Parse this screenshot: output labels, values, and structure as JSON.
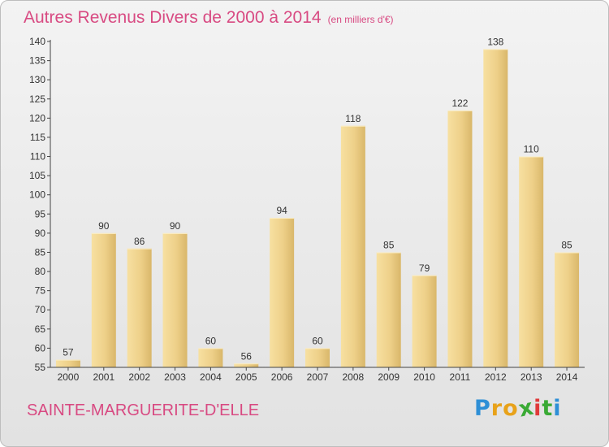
{
  "header": {
    "title": "Autres Revenus Divers de 2000 à 2014",
    "subtitle": "(en milliers d'€)"
  },
  "footer": {
    "commune": "SAINTE-MARGUERITE-D'ELLE",
    "logo_letters": [
      "P",
      "r",
      "o",
      "x",
      "i",
      "t",
      "i"
    ],
    "logo_colors": [
      "#2e8fd6",
      "#e8a21a",
      "#e8a21a",
      "#3aaa35",
      "#e03a3a",
      "#3aaa35",
      "#2e8fd6"
    ]
  },
  "chart_data": {
    "type": "bar",
    "title": "Autres Revenus Divers de 2000 à 2014",
    "subtitle": "(en milliers d'€)",
    "categories": [
      "2000",
      "2001",
      "2002",
      "2003",
      "2004",
      "2005",
      "2006",
      "2007",
      "2008",
      "2009",
      "2010",
      "2011",
      "2012",
      "2013",
      "2014"
    ],
    "values": [
      57,
      90,
      86,
      90,
      60,
      56,
      94,
      60,
      118,
      85,
      79,
      122,
      138,
      110,
      85
    ],
    "ylim": [
      55,
      140
    ],
    "yticks": [
      55,
      60,
      65,
      70,
      75,
      80,
      85,
      90,
      95,
      100,
      105,
      110,
      115,
      120,
      125,
      130,
      135,
      140
    ],
    "grid": false,
    "bar_color": "#f0cf7f",
    "bar_color_dark": "#c9a85a"
  }
}
